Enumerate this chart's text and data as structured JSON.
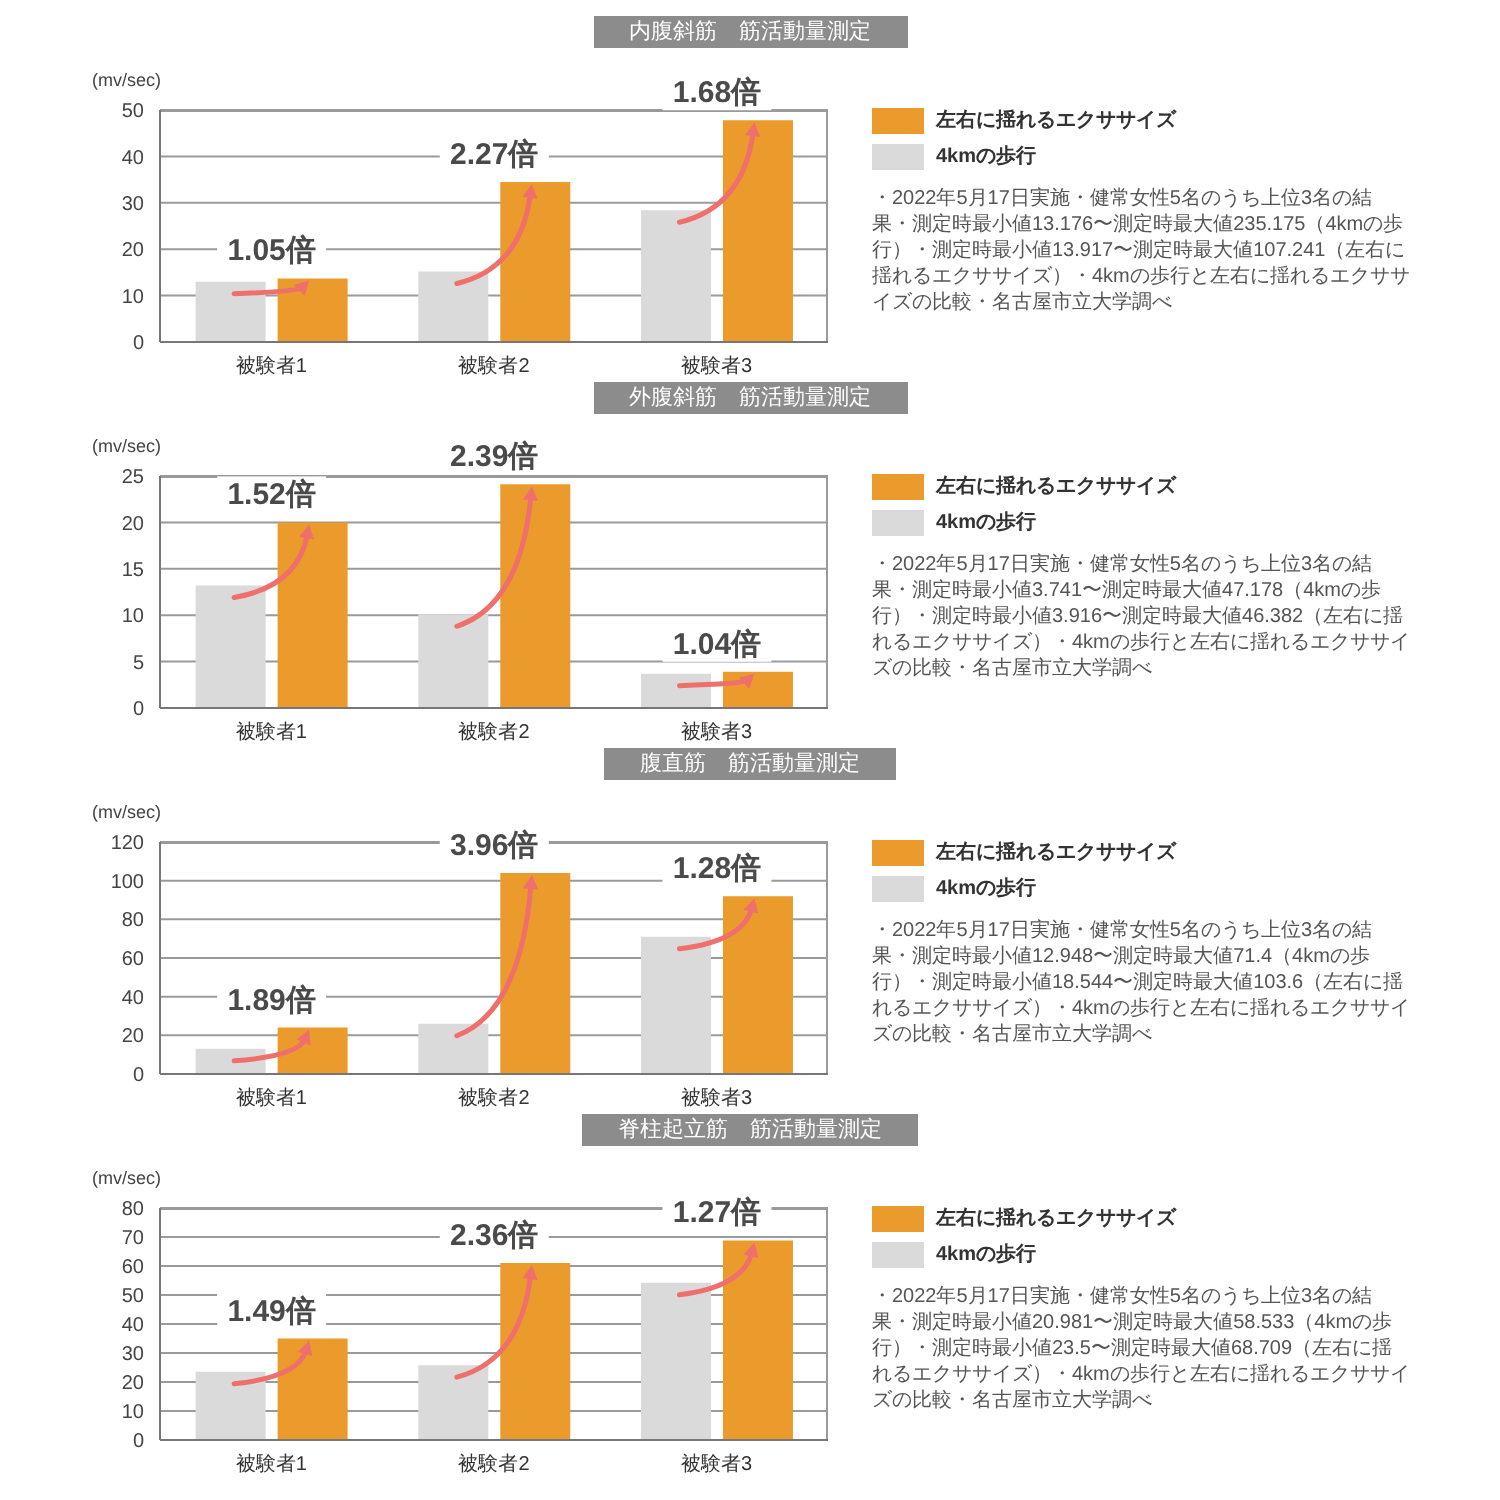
{
  "chart_data": [
    {
      "type": "bar",
      "title": "内腹斜筋　筋活動量測定",
      "ylabel": "(mv/sec)",
      "categories": [
        "被験者1",
        "被験者2",
        "被験者3"
      ],
      "series": [
        {
          "name": "4kmの歩行",
          "color": "#dadada",
          "values": [
            13,
            15.2,
            28.4
          ]
        },
        {
          "name": "左右に揺れるエクササイズ",
          "color": "#eb9a2c",
          "values": [
            13.7,
            34.5,
            47.8
          ]
        }
      ],
      "ylim": [
        0,
        50
      ],
      "yticks": [
        0,
        10,
        20,
        30,
        40,
        50
      ],
      "grid": "y",
      "legend": "right",
      "annotations": [
        {
          "text": "1.05倍",
          "x": "被験者1",
          "y": 13.7
        },
        {
          "text": "2.27倍",
          "x": "被験者2",
          "y": 34.5
        },
        {
          "text": "1.68倍",
          "x": "被験者3",
          "y": 47.8
        },
        "・2022年5月17日実施・健常女性5名のうち上位3名の結果・測定時最小値13.176〜測定時最大値235.175（4kmの歩行）・測定時最小値13.917〜測定時最大値107.241（左右に揺れるエクササイズ）・4kmの歩行と左右に揺れるエクササイズの比較・名古屋市立大学調べ"
      ]
    },
    {
      "type": "bar",
      "title": "外腹斜筋　筋活動量測定",
      "ylabel": "(mv/sec)",
      "categories": [
        "被験者1",
        "被験者2",
        "被験者3"
      ],
      "series": [
        {
          "name": "4kmの歩行",
          "color": "#dadada",
          "values": [
            13.2,
            10.1,
            3.7
          ]
        },
        {
          "name": "左右に揺れるエクササイズ",
          "color": "#eb9a2c",
          "values": [
            20,
            24.1,
            3.9
          ]
        }
      ],
      "ylim": [
        0,
        25
      ],
      "yticks": [
        0,
        5,
        10,
        15,
        20,
        25
      ],
      "grid": "y",
      "legend": "right",
      "annotations": [
        {
          "text": "1.52倍",
          "x": "被験者1",
          "y": 20
        },
        {
          "text": "2.39倍",
          "x": "被験者2",
          "y": 24.1
        },
        {
          "text": "1.04倍",
          "x": "被験者3",
          "y": 3.9
        },
        "・2022年5月17日実施・健常女性5名のうち上位3名の結果・測定時最小値3.741〜測定時最大値47.178（4kmの歩行）・測定時最小値3.916〜測定時最大値46.382（左右に揺れるエクササイズ）・4kmの歩行と左右に揺れるエクササイズの比較・名古屋市立大学調べ"
      ]
    },
    {
      "type": "bar",
      "title": "腹直筋　筋活動量測定",
      "ylabel": "(mv/sec)",
      "categories": [
        "被験者1",
        "被験者2",
        "被験者3"
      ],
      "series": [
        {
          "name": "4kmの歩行",
          "color": "#dadada",
          "values": [
            13,
            26,
            71
          ]
        },
        {
          "name": "左右に揺れるエクササイズ",
          "color": "#eb9a2c",
          "values": [
            24,
            104,
            92
          ]
        }
      ],
      "ylim": [
        0,
        120
      ],
      "yticks": [
        0,
        20,
        40,
        60,
        80,
        100,
        120
      ],
      "grid": "y",
      "legend": "right",
      "annotations": [
        {
          "text": "1.89倍",
          "x": "被験者1",
          "y": 24
        },
        {
          "text": "3.96倍",
          "x": "被験者2",
          "y": 104
        },
        {
          "text": "1.28倍",
          "x": "被験者3",
          "y": 92
        },
        "・2022年5月17日実施・健常女性5名のうち上位3名の結果・測定時最小値12.948〜測定時最大値71.4（4kmの歩行）・測定時最小値18.544〜測定時最大値103.6（左右に揺れるエクササイズ）・4kmの歩行と左右に揺れるエクササイズの比較・名古屋市立大学調べ"
      ]
    },
    {
      "type": "bar",
      "title": "脊柱起立筋　筋活動量測定",
      "ylabel": "(mv/sec)",
      "categories": [
        "被験者1",
        "被験者2",
        "被験者3"
      ],
      "series": [
        {
          "name": "4kmの歩行",
          "color": "#dadada",
          "values": [
            23.5,
            25.8,
            54.2
          ]
        },
        {
          "name": "左右に揺れるエクササイズ",
          "color": "#eb9a2c",
          "values": [
            35,
            61,
            68.8
          ]
        }
      ],
      "ylim": [
        0,
        80
      ],
      "yticks": [
        0,
        10,
        20,
        30,
        40,
        50,
        60,
        70,
        80
      ],
      "grid": "y",
      "legend": "right",
      "annotations": [
        {
          "text": "1.49倍",
          "x": "被験者1",
          "y": 35
        },
        {
          "text": "2.36倍",
          "x": "被験者2",
          "y": 61
        },
        {
          "text": "1.27倍",
          "x": "被験者3",
          "y": 68.8
        },
        "・2022年5月17日実施・健常女性5名のうち上位3名の結果・測定時最小値20.981〜測定時最大値58.533（4kmの歩行）・測定時最小値23.5〜測定時最大値68.709（左右に揺れるエクササイズ）・4kmの歩行と左右に揺れるエクササイズの比較・名古屋市立大学調べ"
      ]
    }
  ]
}
